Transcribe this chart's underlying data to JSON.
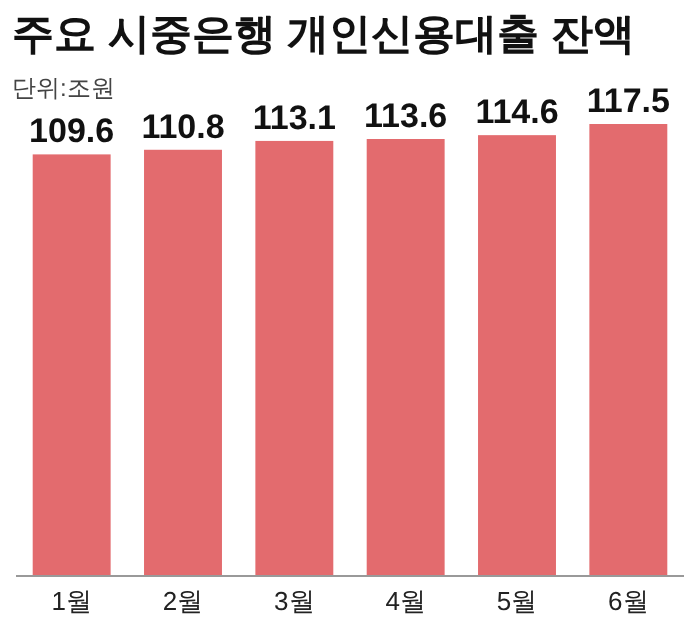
{
  "chart_data": {
    "type": "bar",
    "title": "주요 시중은행 개인신용대출 잔액",
    "subtitle": "단위:조원",
    "categories": [
      "1월",
      "2월",
      "3월",
      "4월",
      "5월",
      "6월"
    ],
    "values": [
      109.6,
      110.8,
      113.1,
      113.6,
      114.6,
      117.5
    ],
    "color": "#e36b6e",
    "data_labels": true
  }
}
